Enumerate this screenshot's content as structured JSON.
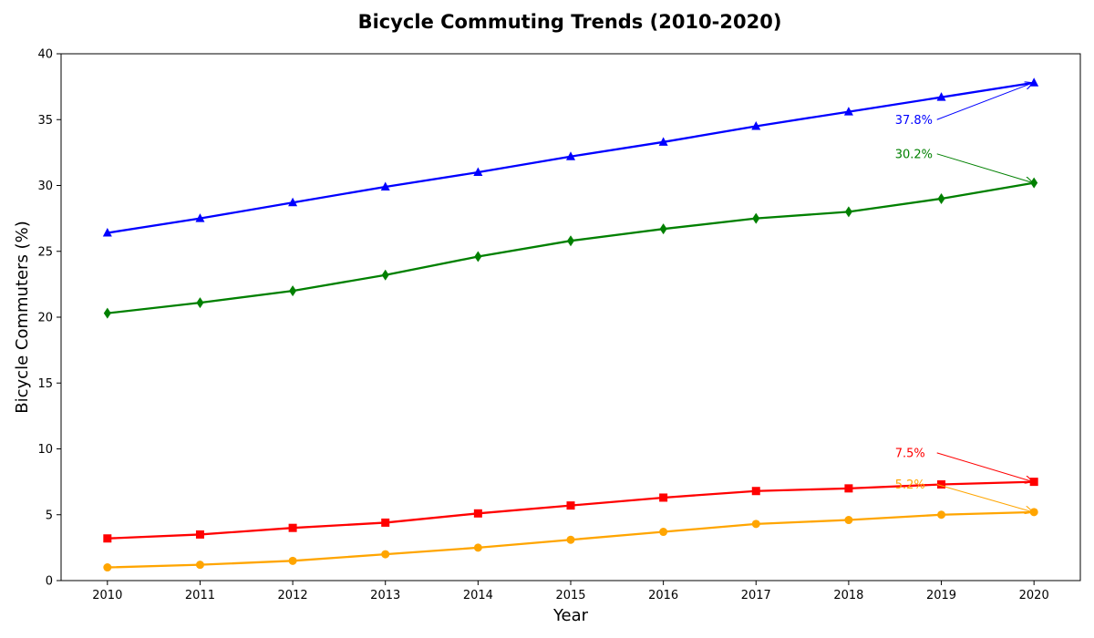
{
  "chart_data": {
    "type": "line",
    "title": "Bicycle Commuting Trends (2010-2020)",
    "xlabel": "Year",
    "ylabel": "Bicycle Commuters (%)",
    "x": [
      2010,
      2011,
      2012,
      2013,
      2014,
      2015,
      2016,
      2017,
      2018,
      2019,
      2020
    ],
    "ylim": [
      0,
      40
    ],
    "yticks": [
      0,
      5,
      10,
      15,
      20,
      25,
      30,
      35,
      40
    ],
    "grid": false,
    "series": [
      {
        "color": "#0000ff",
        "marker": "triangle",
        "values": [
          26.4,
          27.5,
          28.7,
          29.9,
          31.0,
          32.2,
          33.3,
          34.5,
          35.6,
          36.7,
          37.8
        ]
      },
      {
        "color": "#008000",
        "marker": "diamond",
        "values": [
          20.3,
          21.1,
          22.0,
          23.2,
          24.6,
          25.8,
          26.7,
          27.5,
          28.0,
          29.0,
          30.2
        ]
      },
      {
        "color": "#ff0000",
        "marker": "square",
        "values": [
          3.2,
          3.5,
          4.0,
          4.4,
          5.1,
          5.7,
          6.3,
          6.8,
          7.0,
          7.3,
          7.5
        ]
      },
      {
        "color": "#ffa500",
        "marker": "circle",
        "values": [
          1.0,
          1.2,
          1.5,
          2.0,
          2.5,
          3.1,
          3.7,
          4.3,
          4.6,
          5.0,
          5.2
        ]
      }
    ],
    "annotations": [
      {
        "text": "37.8%",
        "series": 0,
        "x": 2020,
        "y": 37.8,
        "label_x": 2018.5,
        "label_y": 35.0,
        "color": "#0000ff"
      },
      {
        "text": "30.2%",
        "series": 1,
        "x": 2020,
        "y": 30.2,
        "label_x": 2018.5,
        "label_y": 32.4,
        "color": "#008000"
      },
      {
        "text": "7.5%",
        "series": 2,
        "x": 2020,
        "y": 7.5,
        "label_x": 2018.5,
        "label_y": 9.7,
        "color": "#ff0000"
      },
      {
        "text": "5.2%",
        "series": 3,
        "x": 2020,
        "y": 5.2,
        "label_x": 2018.5,
        "label_y": 7.3,
        "color": "#ffa500"
      }
    ]
  }
}
